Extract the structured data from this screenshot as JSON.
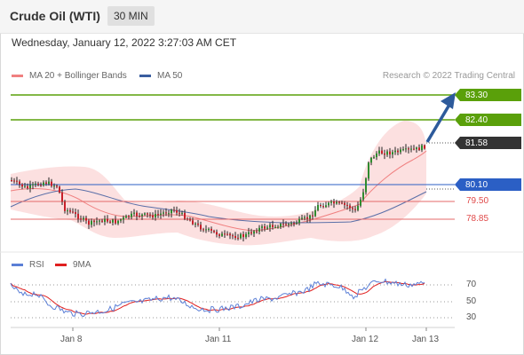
{
  "header": {
    "title": "Crude Oil (WTI)",
    "timeframe": "30 MIN"
  },
  "datetime": "Wednesday, January 12, 2022 3:27:03 AM CET",
  "legend": {
    "ma20": {
      "label": "MA 20 + Bollinger Bands",
      "color": "#f08080"
    },
    "ma50": {
      "label": "MA 50",
      "color": "#3a5d9f"
    },
    "research": "Research © 2022 Trading Central"
  },
  "levels": [
    {
      "value": "83.30",
      "kind": "resistance",
      "color": "#5aa00a"
    },
    {
      "value": "82.40",
      "kind": "resistance",
      "color": "#5aa00a"
    },
    {
      "value": "81.58",
      "kind": "last",
      "color": "#333333"
    },
    {
      "value": "80.10",
      "kind": "pivot",
      "color": "#2b5fc5"
    },
    {
      "value": "79.50",
      "kind": "support",
      "color": "#e04a4a"
    },
    {
      "value": "78.85",
      "kind": "support",
      "color": "#e04a4a"
    }
  ],
  "rsi_legend": {
    "rsi": {
      "label": "RSI",
      "color": "#5b7fd6"
    },
    "ma9": {
      "label": "9MA",
      "color": "#e02020"
    }
  },
  "rsi_axis": [
    "70",
    "50",
    "30"
  ],
  "x_axis": [
    "Jan 8",
    "Jan 11",
    "Jan 12",
    "Jan 13"
  ]
}
